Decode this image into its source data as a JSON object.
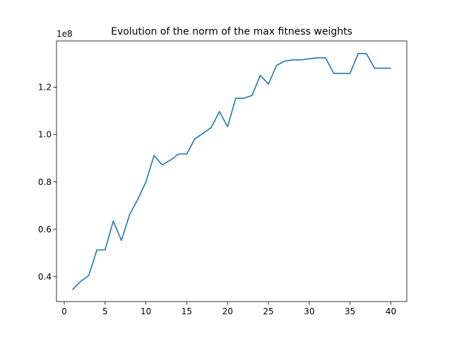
{
  "chart_data": {
    "type": "line",
    "title": "Evolution of the norm of the max fitness weights",
    "xlabel": "",
    "ylabel": "",
    "y_offset_label": "1e8",
    "xlim": [
      -0.95,
      41.95
    ],
    "ylim": [
      0.295,
      1.395
    ],
    "xticks": [
      0,
      5,
      10,
      15,
      20,
      25,
      30,
      35,
      40
    ],
    "xtick_labels": [
      "0",
      "5",
      "10",
      "15",
      "20",
      "25",
      "30",
      "35",
      "40"
    ],
    "yticks": [
      0.4,
      0.6,
      0.8,
      1.0,
      1.2
    ],
    "ytick_labels": [
      "0.4",
      "0.6",
      "0.8",
      "1.0",
      "1.2"
    ],
    "grid": false,
    "series": [
      {
        "color": "#1f77b4",
        "x": [
          1,
          2,
          3,
          4,
          5,
          6,
          7,
          8,
          9,
          10,
          11,
          12,
          13,
          14,
          15,
          16,
          17,
          18,
          19,
          20,
          21,
          22,
          23,
          24,
          25,
          26,
          27,
          28,
          29,
          30,
          31,
          32,
          33,
          34,
          35,
          36,
          37,
          38,
          39,
          40
        ],
        "y": [
          0.345,
          0.38,
          0.405,
          0.513,
          0.513,
          0.635,
          0.553,
          0.662,
          0.726,
          0.8,
          0.912,
          0.872,
          0.892,
          0.918,
          0.918,
          0.982,
          1.005,
          1.03,
          1.097,
          1.033,
          1.153,
          1.153,
          1.165,
          1.25,
          1.213,
          1.292,
          1.31,
          1.315,
          1.315,
          1.32,
          1.324,
          1.324,
          1.258,
          1.258,
          1.258,
          1.342,
          1.342,
          1.28,
          1.28,
          1.28
        ]
      }
    ]
  }
}
